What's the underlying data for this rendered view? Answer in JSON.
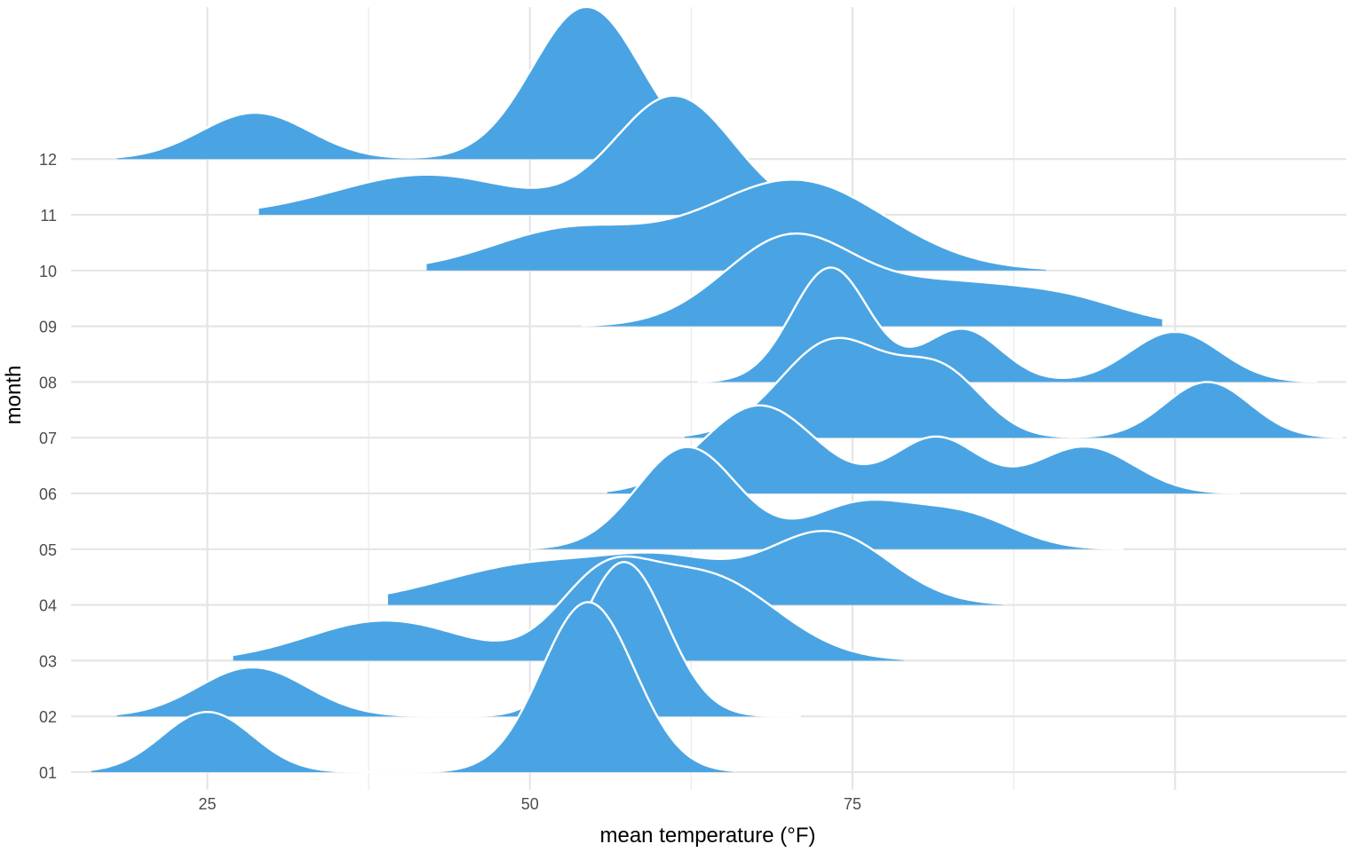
{
  "chart_data": {
    "type": "ridgeline",
    "title": "",
    "xlabel": "mean temperature (°F)",
    "ylabel": "month",
    "x_ticks": [
      25,
      50,
      75
    ],
    "x_minor_gridlines": [
      37.5,
      62.5,
      87.5
    ],
    "xlim": [
      15,
      103
    ],
    "categories": [
      "01",
      "02",
      "03",
      "04",
      "05",
      "06",
      "07",
      "08",
      "09",
      "10",
      "11",
      "12"
    ],
    "grid": true,
    "fill_color": "#4aa4e3",
    "outline_color": "#ffffff",
    "density_unit": "row heights",
    "series": [
      {
        "name": "01",
        "x_range": [
          16,
          66
        ],
        "components": [
          {
            "mu": 25,
            "sigma": 3.5,
            "h": 1.08
          },
          {
            "mu": 54.5,
            "sigma": 3.6,
            "h": 3.05
          }
        ]
      },
      {
        "name": "02",
        "x_range": [
          18,
          71
        ],
        "components": [
          {
            "mu": 28.5,
            "sigma": 4.2,
            "h": 0.88
          },
          {
            "mu": 57.3,
            "sigma": 3.3,
            "h": 2.77
          }
        ]
      },
      {
        "name": "03",
        "x_range": [
          27,
          79
        ],
        "components": [
          {
            "mu": 38.8,
            "sigma": 6.0,
            "h": 0.72
          },
          {
            "mu": 55.5,
            "sigma": 3.5,
            "h": 1.2
          },
          {
            "mu": 63.5,
            "sigma": 5.5,
            "h": 1.53
          }
        ]
      },
      {
        "name": "04",
        "x_range": [
          39,
          87
        ],
        "components": [
          {
            "mu": 51,
            "sigma": 7.5,
            "h": 0.75
          },
          {
            "mu": 61,
            "sigma": 4.5,
            "h": 0.55
          },
          {
            "mu": 73,
            "sigma": 4.8,
            "h": 1.3
          }
        ]
      },
      {
        "name": "05",
        "x_range": [
          50,
          96
        ],
        "components": [
          {
            "mu": 62.2,
            "sigma": 3.9,
            "h": 1.83
          },
          {
            "mu": 75.5,
            "sigma": 4.0,
            "h": 0.78
          },
          {
            "mu": 83.5,
            "sigma": 4.0,
            "h": 0.6
          }
        ]
      },
      {
        "name": "06",
        "x_range": [
          56,
          105
        ],
        "components": [
          {
            "mu": 67.8,
            "sigma": 4.4,
            "h": 1.58
          },
          {
            "mu": 81.5,
            "sigma": 3.3,
            "h": 1.0
          },
          {
            "mu": 93,
            "sigma": 3.8,
            "h": 0.84
          }
        ]
      },
      {
        "name": "07",
        "x_range": [
          62,
          113
        ],
        "components": [
          {
            "mu": 73.6,
            "sigma": 4.2,
            "h": 1.75
          },
          {
            "mu": 82,
            "sigma": 3.2,
            "h": 1.1
          },
          {
            "mu": 102.5,
            "sigma": 3.3,
            "h": 1.0
          }
        ]
      },
      {
        "name": "08",
        "x_range": [
          63,
          111
        ],
        "components": [
          {
            "mu": 73.3,
            "sigma": 3.0,
            "h": 2.05
          },
          {
            "mu": 83.5,
            "sigma": 3.0,
            "h": 0.95
          },
          {
            "mu": 100,
            "sigma": 3.5,
            "h": 0.9
          }
        ]
      },
      {
        "name": "09",
        "x_range": [
          54,
          99
        ],
        "components": [
          {
            "mu": 70.3,
            "sigma": 5.2,
            "h": 1.62
          },
          {
            "mu": 82,
            "sigma": 5.0,
            "h": 0.62
          },
          {
            "mu": 91,
            "sigma": 5.0,
            "h": 0.5
          }
        ]
      },
      {
        "name": "10",
        "x_range": [
          42,
          90
        ],
        "components": [
          {
            "mu": 53,
            "sigma": 6.0,
            "h": 0.72
          },
          {
            "mu": 70.5,
            "sigma": 7.0,
            "h": 1.62
          }
        ]
      },
      {
        "name": "11",
        "x_range": [
          29,
          75
        ],
        "components": [
          {
            "mu": 42,
            "sigma": 7.0,
            "h": 0.72
          },
          {
            "mu": 61.2,
            "sigma": 4.6,
            "h": 2.12
          }
        ]
      },
      {
        "name": "12",
        "x_range": [
          18,
          63
        ],
        "components": [
          {
            "mu": 28.7,
            "sigma": 4.2,
            "h": 0.83
          },
          {
            "mu": 54.4,
            "sigma": 4.2,
            "h": 2.73
          }
        ]
      }
    ]
  }
}
